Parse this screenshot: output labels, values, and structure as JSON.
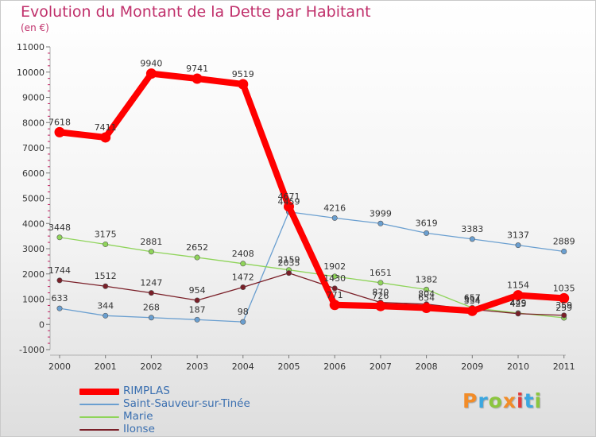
{
  "header": {
    "title": "Evolution du Montant de la Dette par Habitant",
    "subtitle": "(en €)"
  },
  "chart_data": {
    "type": "line",
    "title": "Evolution du Montant de la Dette par Habitant",
    "subtitle": "(en €)",
    "xlabel": "",
    "ylabel": "",
    "categories": [
      "2000",
      "2001",
      "2002",
      "2003",
      "2004",
      "2005",
      "2006",
      "2007",
      "2008",
      "2009",
      "2010",
      "2011"
    ],
    "ylim": [
      -1000,
      11000
    ],
    "yticks": [
      -1000,
      0,
      1000,
      2000,
      3000,
      4000,
      5000,
      6000,
      7000,
      8000,
      9000,
      10000,
      11000
    ],
    "grid": false,
    "legend_position": "bottom-left",
    "series": [
      {
        "name": "RIMPLAS",
        "color": "#ff0000",
        "values": [
          7618,
          7411,
          9940,
          9741,
          9519,
          4671,
          771,
          726,
          654,
          534,
          1154,
          1035
        ],
        "labels": [
          "7618",
          "7411",
          "9940",
          "9741",
          "9519",
          "4671",
          "771",
          "726",
          "654",
          "534",
          "1154",
          "1035"
        ]
      },
      {
        "name": "Saint-Sauveur-sur-Tinée",
        "color": "#6a9fd0",
        "values": [
          633,
          344,
          268,
          187,
          98,
          4459,
          4216,
          3999,
          3619,
          3383,
          3137,
          2889
        ],
        "labels": [
          "633",
          "344",
          "268",
          "187",
          "98",
          "4459",
          "4216",
          "3999",
          "3619",
          "3383",
          "3137",
          "2889"
        ]
      },
      {
        "name": "Marie",
        "color": "#8fd45a",
        "values": [
          3448,
          3175,
          2881,
          2652,
          2408,
          2159,
          1902,
          1651,
          1382,
          657,
          449,
          259
        ],
        "labels": [
          "3448",
          "3175",
          "2881",
          "2652",
          "2408",
          "2159",
          "1902",
          "1651",
          "1382",
          "657",
          "449",
          "259"
        ]
      },
      {
        "name": "Ilonse",
        "color": "#7a1f28",
        "values": [
          1744,
          1512,
          1247,
          954,
          1472,
          2035,
          1430,
          870,
          804,
          594,
          425,
          359
        ],
        "labels": [
          "1744",
          "1512",
          "1247",
          "954",
          "1472",
          "2035",
          "1430",
          "870",
          "804",
          "594",
          "425",
          "359"
        ]
      }
    ]
  },
  "logo": {
    "text": "Proxiti",
    "colors": [
      "#f28c28",
      "#3ba7e0",
      "#8cc63f",
      "#f28c28",
      "#e03c3c",
      "#3ba7e0",
      "#8cc63f"
    ]
  }
}
